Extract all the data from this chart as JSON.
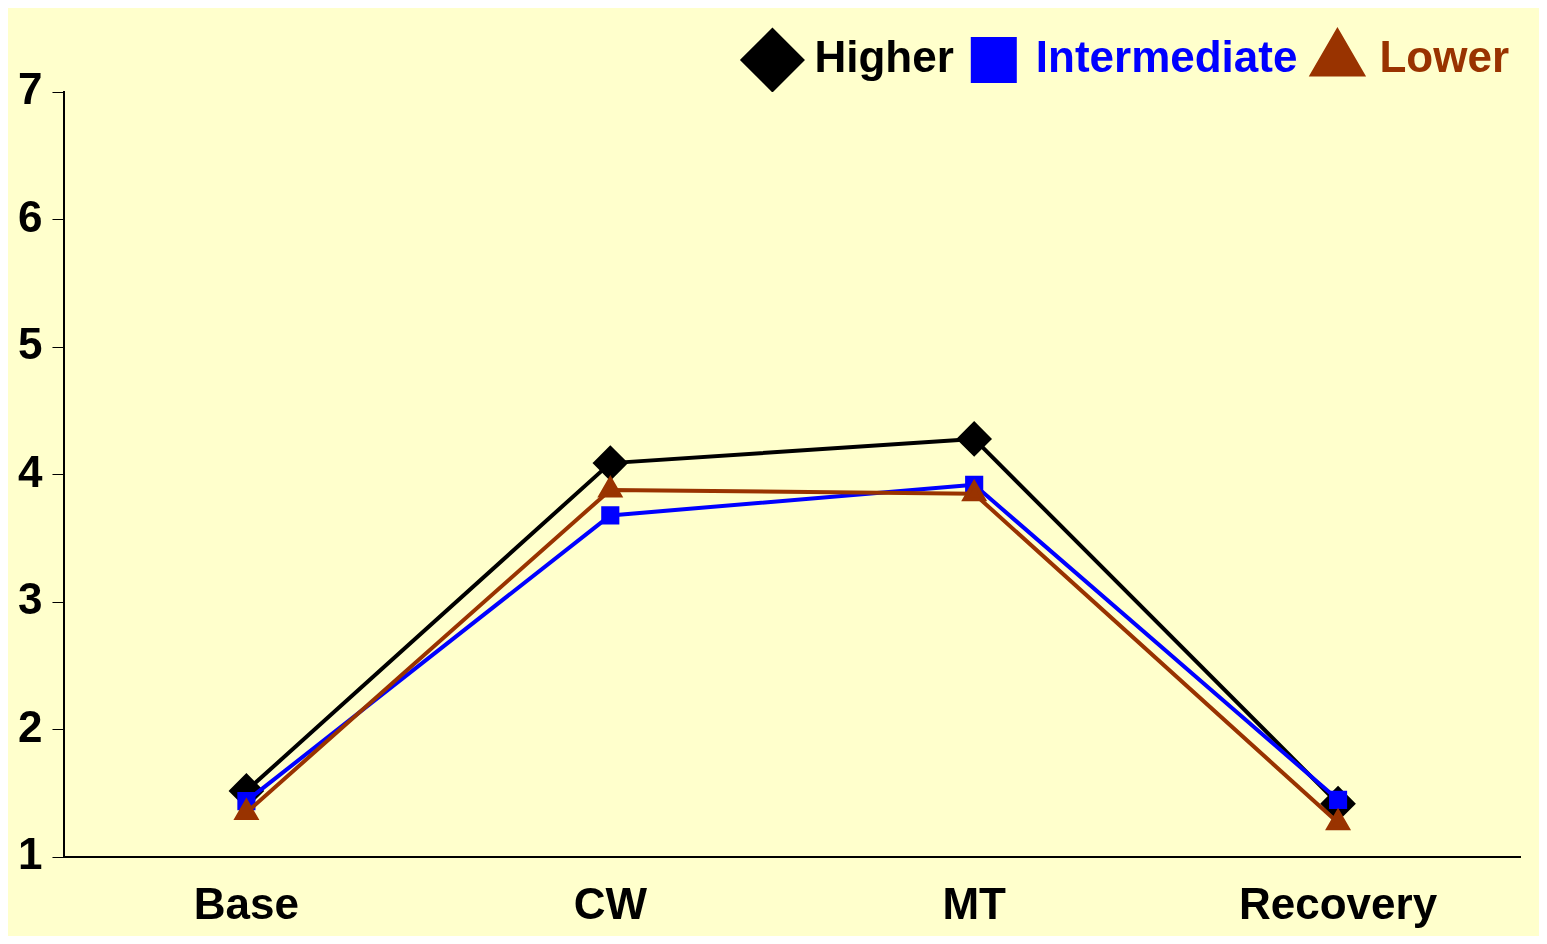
{
  "chart_data": {
    "type": "line",
    "categories": [
      "Base",
      "CW",
      "MT",
      "Recovery"
    ],
    "series": [
      {
        "name": "Higher",
        "color": "#000000",
        "marker": "diamond",
        "values": [
          1.52,
          4.09,
          4.28,
          1.42
        ]
      },
      {
        "name": "Intermediate",
        "color": "#0000ff",
        "marker": "square",
        "values": [
          1.44,
          3.68,
          3.92,
          1.45
        ]
      },
      {
        "name": "Lower",
        "color": "#993300",
        "marker": "triangle",
        "values": [
          1.35,
          3.88,
          3.85,
          1.27
        ]
      }
    ],
    "ylim": [
      1,
      7
    ],
    "yticks": [
      1,
      2,
      3,
      4,
      5,
      6,
      7
    ],
    "grid": false,
    "legend": "top right",
    "line_style": "solid"
  }
}
